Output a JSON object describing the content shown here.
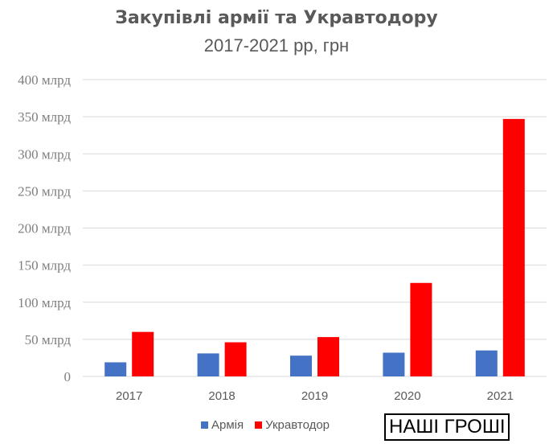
{
  "chart_data": {
    "type": "bar",
    "title": "Закупівлі армії та Укравтодору",
    "subtitle": "2017-2021 рр, грн",
    "categories": [
      "2017",
      "2018",
      "2019",
      "2020",
      "2021"
    ],
    "series": [
      {
        "name": "Армія",
        "color": "#4472c4",
        "values": [
          19,
          31,
          28,
          32,
          35
        ]
      },
      {
        "name": "Укравтодор",
        "color": "#ff0000",
        "values": [
          60,
          46,
          53,
          126,
          347
        ]
      }
    ],
    "ylim": [
      0,
      400
    ],
    "yticks": [
      {
        "value": 0,
        "label": "0"
      },
      {
        "value": 50,
        "label": "50 млрд"
      },
      {
        "value": 100,
        "label": "100 млрд"
      },
      {
        "value": 150,
        "label": "150 млрд"
      },
      {
        "value": 200,
        "label": "200 млрд"
      },
      {
        "value": 250,
        "label": "250 млрд"
      },
      {
        "value": 300,
        "label": "300 млрд"
      },
      {
        "value": 350,
        "label": "350 млрд"
      },
      {
        "value": 400,
        "label": "400 млрд"
      }
    ],
    "grid": true,
    "legend_position": "bottom"
  },
  "logo_text": "НАШІ ГРОШІ"
}
